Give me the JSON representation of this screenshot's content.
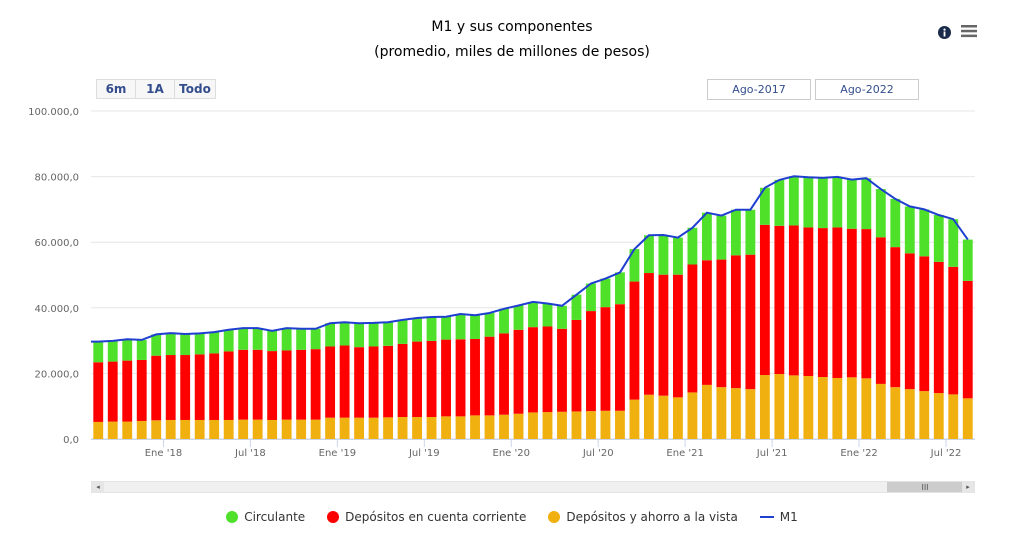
{
  "header": {
    "title": "M1 y sus componentes",
    "subtitle": "(promedio, miles de millones de pesos)",
    "info_icon": "info-icon",
    "menu_icon": "hamburger-menu-icon"
  },
  "range_selector": {
    "buttons": [
      "6m",
      "1A",
      "Todo"
    ],
    "from": "Ago-2017",
    "to": "Ago-2022"
  },
  "scrollbar": {
    "thumb_glyph": "III",
    "left_arrow": "◂",
    "right_arrow": "▸"
  },
  "legend": [
    {
      "name": "Circulante",
      "color": "#4fe02a",
      "symbol": "dot"
    },
    {
      "name": "Depósitos en cuenta corriente",
      "color": "#ff0000",
      "symbol": "dot"
    },
    {
      "name": "Depósitos y ahorro a la vista",
      "color": "#f0b010",
      "symbol": "dot"
    },
    {
      "name": "M1",
      "color": "#1f3fd0",
      "symbol": "line"
    }
  ],
  "chart_data": {
    "type": "bar",
    "stacked": true,
    "title": "M1 y sus componentes",
    "subtitle": "(promedio, miles de millones de pesos)",
    "xlabel": "",
    "ylabel": "",
    "ylim": [
      0,
      100000
    ],
    "yticks": [
      0,
      20000,
      40000,
      60000,
      80000,
      100000
    ],
    "ytick_labels": [
      "0,0",
      "20.000,0",
      "40.000,0",
      "60.000,0",
      "80.000,0",
      "100.000,0"
    ],
    "x_start": "2017-08",
    "xtick_labels": [
      {
        "label": "Ene '18",
        "index": 5
      },
      {
        "label": "Jul '18",
        "index": 11
      },
      {
        "label": "Ene '19",
        "index": 17
      },
      {
        "label": "Jul '19",
        "index": 23
      },
      {
        "label": "Ene '20",
        "index": 29
      },
      {
        "label": "Jul '20",
        "index": 35
      },
      {
        "label": "Ene '21",
        "index": 41
      },
      {
        "label": "Jul '21",
        "index": 47
      },
      {
        "label": "Ene '22",
        "index": 53
      },
      {
        "label": "Jul '22",
        "index": 59
      }
    ],
    "grid": true,
    "legend_position": "bottom",
    "series": [
      {
        "name": "Depósitos y ahorro a la vista",
        "color": "#f0b010",
        "values": [
          5200,
          5300,
          5300,
          5500,
          5700,
          5800,
          5800,
          5800,
          5800,
          5800,
          5900,
          5900,
          5800,
          5900,
          5900,
          5900,
          6500,
          6500,
          6500,
          6500,
          6600,
          6700,
          6700,
          6700,
          6900,
          6900,
          7200,
          7200,
          7400,
          7700,
          8100,
          8200,
          8300,
          8400,
          8500,
          8600,
          8600,
          12000,
          13500,
          13200,
          12700,
          14200,
          16500,
          15800,
          15500,
          15200,
          19500,
          19800,
          19400,
          19200,
          18900,
          18600,
          18800,
          18500,
          16800,
          15800,
          15200,
          14600,
          14000,
          13600,
          12400
        ]
      },
      {
        "name": "Depósitos en cuenta corriente",
        "color": "#ff0000",
        "values": [
          18200,
          18300,
          18600,
          18600,
          19700,
          19800,
          19800,
          20000,
          20300,
          20900,
          21300,
          21300,
          21000,
          21100,
          21300,
          21500,
          21700,
          22000,
          21500,
          21700,
          21800,
          22300,
          23000,
          23200,
          23400,
          23500,
          23300,
          24000,
          24800,
          25600,
          26000,
          26100,
          25300,
          27900,
          30500,
          31600,
          32500,
          36000,
          37100,
          36900,
          37400,
          39000,
          38000,
          38900,
          40500,
          41000,
          45800,
          45200,
          45700,
          45300,
          45400,
          45900,
          45300,
          45500,
          44700,
          42700,
          41400,
          41100,
          40000,
          38900,
          35800
        ]
      },
      {
        "name": "Circulante",
        "color": "#4fe02a",
        "values": [
          6300,
          6300,
          6500,
          6100,
          6500,
          6700,
          6400,
          6400,
          6500,
          6600,
          6600,
          6600,
          6200,
          6800,
          6400,
          6200,
          7100,
          7100,
          7100,
          7200,
          7200,
          7300,
          7200,
          7300,
          7000,
          7700,
          7200,
          7200,
          7500,
          7400,
          7700,
          7000,
          7000,
          7700,
          8400,
          8700,
          9700,
          9900,
          11500,
          12100,
          11300,
          11200,
          14500,
          13400,
          13900,
          13700,
          11300,
          14000,
          15000,
          15300,
          15300,
          15400,
          15000,
          15500,
          14700,
          14700,
          14300,
          14300,
          14300,
          14500,
          12600
        ]
      },
      {
        "name": "M1",
        "color": "#1f3fd0",
        "type": "line",
        "values": [
          29700,
          29900,
          30400,
          30200,
          31900,
          32300,
          32000,
          32200,
          32600,
          33300,
          33800,
          33800,
          33000,
          33800,
          33600,
          33600,
          35300,
          35600,
          35300,
          35400,
          35600,
          36300,
          36900,
          37200,
          37300,
          38100,
          37700,
          38400,
          39700,
          40700,
          41800,
          41300,
          40600,
          44000,
          47400,
          48900,
          50800,
          57900,
          62100,
          62200,
          61400,
          64400,
          69000,
          68100,
          69900,
          69900,
          76600,
          79000,
          80100,
          79800,
          79600,
          79900,
          79100,
          79500,
          76200,
          73200,
          70900,
          70000,
          68300,
          67000,
          60800
        ]
      }
    ]
  }
}
